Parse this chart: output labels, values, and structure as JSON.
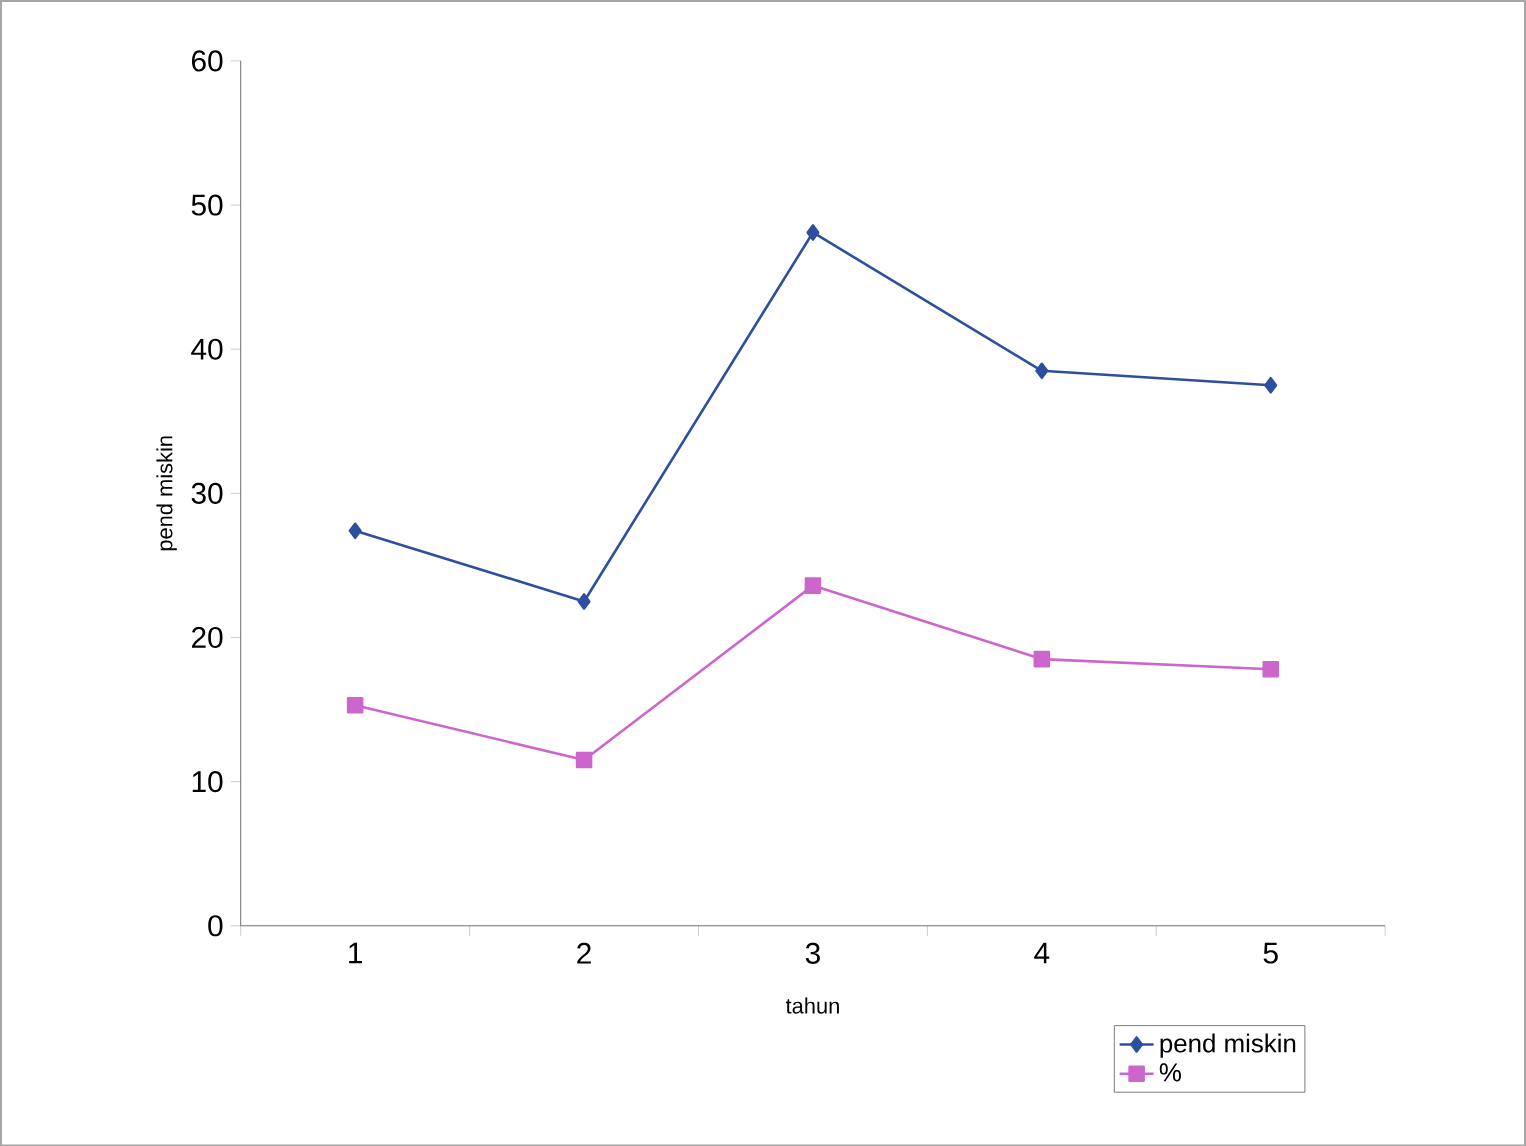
{
  "chart_data": {
    "type": "line",
    "xlabel": "tahun",
    "ylabel": "pend miskin",
    "categories": [
      "1",
      "2",
      "3",
      "4",
      "5"
    ],
    "series": [
      {
        "name": "pend miskin",
        "color": "#2d4f9e",
        "marker": "diamond",
        "values": [
          27.4,
          22.5,
          48.1,
          38.5,
          37.5
        ]
      },
      {
        "name": "%",
        "color": "#cc66cc",
        "marker": "square",
        "values": [
          15.3,
          11.5,
          23.6,
          18.5,
          17.8
        ]
      }
    ],
    "ylim": [
      0,
      60
    ],
    "yticks": [
      0,
      10,
      20,
      30,
      40,
      50,
      60
    ],
    "grid": false,
    "legend": "bottom right",
    "line_style": "solid"
  }
}
